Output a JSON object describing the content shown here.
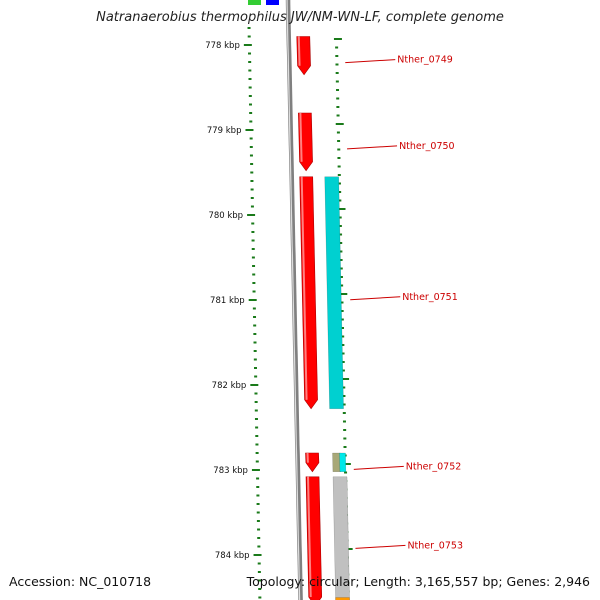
{
  "title": "Natranaerobius thermophilus JW/NM-WN-LF, complete genome",
  "footer": {
    "accession": "Accession: NC_010718",
    "topology": "Topology: circular; Length: 3,165,557 bp; Genes: 2,946"
  },
  "ticks": [
    {
      "label": "778 kbp",
      "kbp": 778
    },
    {
      "label": "779 kbp",
      "kbp": 779
    },
    {
      "label": "780 kbp",
      "kbp": 780
    },
    {
      "label": "781 kbp",
      "kbp": 781
    },
    {
      "label": "782 kbp",
      "kbp": 782
    },
    {
      "label": "783 kbp",
      "kbp": 783
    },
    {
      "label": "784 kbp",
      "kbp": 784
    }
  ],
  "genes": [
    {
      "label": "Nther_0749",
      "start_kbp": 777.9,
      "end_kbp": 778.35,
      "color": "#ff0000"
    },
    {
      "label": "Nther_0750",
      "start_kbp": 778.8,
      "end_kbp": 779.48,
      "color": "#ff0000"
    },
    {
      "label": "Nther_0751",
      "start_kbp": 779.55,
      "end_kbp": 782.28,
      "color": "#ff0000"
    },
    {
      "label": "Nther_0752",
      "start_kbp": 782.8,
      "end_kbp": 783.02,
      "color": "#ff0000"
    },
    {
      "label": "Nther_0753",
      "start_kbp": 783.08,
      "end_kbp": 784.6,
      "color": "#ff0000"
    }
  ],
  "features": [
    {
      "name": "cds-0751",
      "start_kbp": 779.55,
      "end_kbp": 782.28,
      "color": "#00d0d0"
    },
    {
      "name": "misc-0752",
      "start_kbp": 782.8,
      "end_kbp": 783.02,
      "color": "#a8a878"
    },
    {
      "name": "cds-0752",
      "start_kbp": 782.8,
      "end_kbp": 783.02,
      "color": "#00e8e8"
    },
    {
      "name": "gene-0753",
      "start_kbp": 783.08,
      "end_kbp": 784.6,
      "color": "#c0c0c0"
    },
    {
      "name": "orange-0754",
      "start_kbp": 784.5,
      "end_kbp": 784.6,
      "color": "#ff9900"
    }
  ],
  "colors": {
    "backbone": "#808080",
    "tick": "#1a7a1a",
    "label": "#cc0000"
  }
}
